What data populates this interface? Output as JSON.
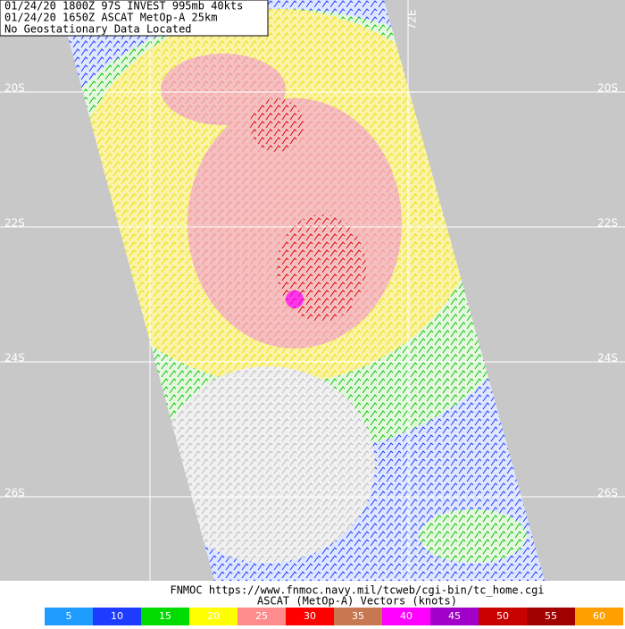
{
  "header": {
    "lines": [
      "01/24/20 1800Z  97S INVEST 995mb 40kts",
      "01/24/20 1650Z  ASCAT MetOp-A 25km",
      "No Geostationary Data Located"
    ]
  },
  "grid": {
    "latitudes": [
      "20S",
      "22S",
      "24S",
      "26S"
    ],
    "longitude": "72E"
  },
  "footer": {
    "lines": [
      "FNMOC https://www.fnmoc.navy.mil/tcweb/cgi-bin/tc_home.cgi",
      "ASCAT (MetOp-A) Vectors (knots)"
    ]
  },
  "legend": [
    {
      "label": "5",
      "color": "#1e9bff"
    },
    {
      "label": "10",
      "color": "#1e3cff"
    },
    {
      "label": "15",
      "color": "#00dc00"
    },
    {
      "label": "20",
      "color": "#ffff00"
    },
    {
      "label": "25",
      "color": "#ff8c8c"
    },
    {
      "label": "30",
      "color": "#ff0000"
    },
    {
      "label": "35",
      "color": "#c87850"
    },
    {
      "label": "40",
      "color": "#ff00ff"
    },
    {
      "label": "45",
      "color": "#a000c8"
    },
    {
      "label": "50",
      "color": "#c80000"
    },
    {
      "label": "55",
      "color": "#a00000"
    },
    {
      "label": "60",
      "color": "#ffa000"
    }
  ]
}
